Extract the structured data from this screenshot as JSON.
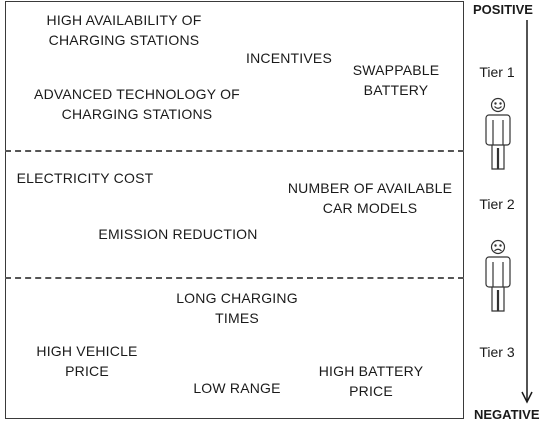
{
  "axis": {
    "top_label": "POSITIVE",
    "bottom_label": "NEGATIVE"
  },
  "tiers": [
    {
      "label": "Tier 1",
      "face": "smiling-face-icon",
      "factors": [
        "HIGH AVAILABILITY OF\nCHARGING STATIONS",
        "INCENTIVES",
        "SWAPPABLE\nBATTERY",
        "ADVANCED TECHNOLOGY OF\nCHARGING STATIONS"
      ]
    },
    {
      "label": "Tier 2",
      "face": "frowning-face-icon",
      "factors": [
        "ELECTRICITY COST",
        "NUMBER OF AVAILABLE\nCAR MODELS",
        "EMISSION REDUCTION"
      ]
    },
    {
      "label": "Tier 3",
      "face": "",
      "factors": [
        "LONG CHARGING\nTIMES",
        "HIGH VEHICLE\nPRICE",
        "LOW RANGE",
        "HIGH BATTERY\nPRICE"
      ]
    }
  ],
  "colors": {
    "line": "#3a3a3a",
    "text": "#1a1a1a"
  }
}
